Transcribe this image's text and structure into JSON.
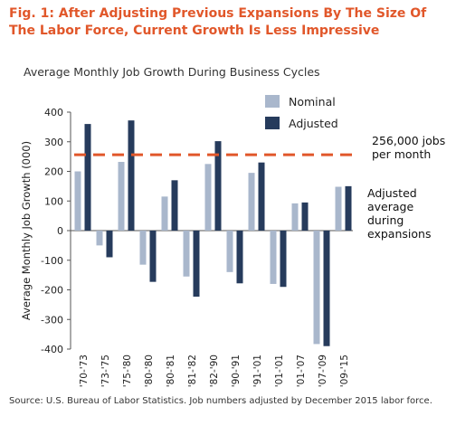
{
  "title": "Fig. 1: After Adjusting Previous Expansions By The Size Of The Labor Force, Current Growth Is Less Impressive",
  "subtitle": "Average Monthly Job Growth During Business Cycles",
  "source": "Source: U.S. Bureau of Labor Statistics. Job numbers adjusted by December 2015 labor force.",
  "colors": {
    "title": "#e1572a",
    "nominal": "#a9b7cc",
    "adjusted": "#263b5c",
    "reference_line": "#e1572a"
  },
  "chart_data": {
    "type": "bar",
    "categories": [
      "'70-'73",
      "'73-'75",
      "'75-'80",
      "'80-'80",
      "'80-'81",
      "'81-'82",
      "'82-'90",
      "'90-'91",
      "'91-'01",
      "'01-'01",
      "'01-'07",
      "'07-'09",
      "'09-'15"
    ],
    "series": [
      {
        "name": "Nominal",
        "values": [
          200,
          -50,
          232,
          -115,
          115,
          -155,
          225,
          -140,
          195,
          -180,
          92,
          -383,
          148
        ]
      },
      {
        "name": "Adjusted",
        "values": [
          360,
          -90,
          372,
          -173,
          170,
          -223,
          302,
          -178,
          230,
          -190,
          95,
          -390,
          150
        ]
      }
    ],
    "ylabel": "Average Monthly Job Growth (000)",
    "xlabel": "",
    "ylim": [
      -400,
      400
    ],
    "yticks": [
      -400,
      -300,
      -200,
      -100,
      0,
      100,
      200,
      300,
      400
    ],
    "grid": false,
    "legend": "top-right",
    "reference_line": {
      "value": 256,
      "style": "dashed",
      "label": "256,000 jobs per month",
      "description": "Adjusted average during expansions"
    }
  }
}
